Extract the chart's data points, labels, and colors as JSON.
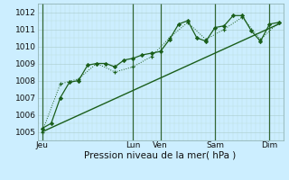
{
  "bg_color": "#cceeff",
  "grid_color_major": "#aacccc",
  "grid_color_minor": "#bbdddd",
  "line_color": "#1a5e1a",
  "ylabel": "Pression niveau de la mer( hPa )",
  "ylim": [
    1004.5,
    1012.5
  ],
  "yticks": [
    1005,
    1006,
    1007,
    1008,
    1009,
    1010,
    1011,
    1012
  ],
  "day_labels": [
    "Jeu",
    "Lun",
    "Ven",
    "Sam",
    "Dim"
  ],
  "day_positions": [
    0,
    10,
    13,
    19,
    25
  ],
  "vline_positions": [
    0,
    10,
    13,
    19,
    25
  ],
  "series1_x": [
    0,
    1,
    2,
    3,
    4,
    5,
    6,
    7,
    8,
    9,
    10,
    11,
    12,
    13,
    14,
    15,
    16,
    17,
    18,
    19,
    20,
    21,
    22,
    23,
    24,
    25,
    26
  ],
  "series1_y": [
    1005.2,
    1005.5,
    1007.0,
    1007.9,
    1008.0,
    1008.9,
    1009.0,
    1009.0,
    1008.8,
    1009.2,
    1009.3,
    1009.5,
    1009.6,
    1009.7,
    1010.4,
    1011.3,
    1011.5,
    1010.5,
    1010.3,
    1011.1,
    1011.2,
    1011.8,
    1011.8,
    1010.9,
    1010.3,
    1011.3,
    1011.4
  ],
  "series2_x": [
    0,
    2,
    4,
    6,
    8,
    10,
    12,
    14,
    16,
    18,
    20,
    22,
    24,
    26
  ],
  "series2_y": [
    1005.0,
    1007.8,
    1008.1,
    1009.0,
    1008.5,
    1008.8,
    1009.4,
    1010.5,
    1011.4,
    1010.4,
    1011.0,
    1011.7,
    1010.4,
    1011.4
  ],
  "trend_x": [
    0,
    26
  ],
  "trend_y": [
    1005.0,
    1011.3
  ],
  "xlim": [
    -0.5,
    26.5
  ],
  "figsize": [
    3.2,
    2.0
  ],
  "dpi": 100,
  "tick_fontsize": 6.5,
  "xlabel_fontsize": 7.5
}
